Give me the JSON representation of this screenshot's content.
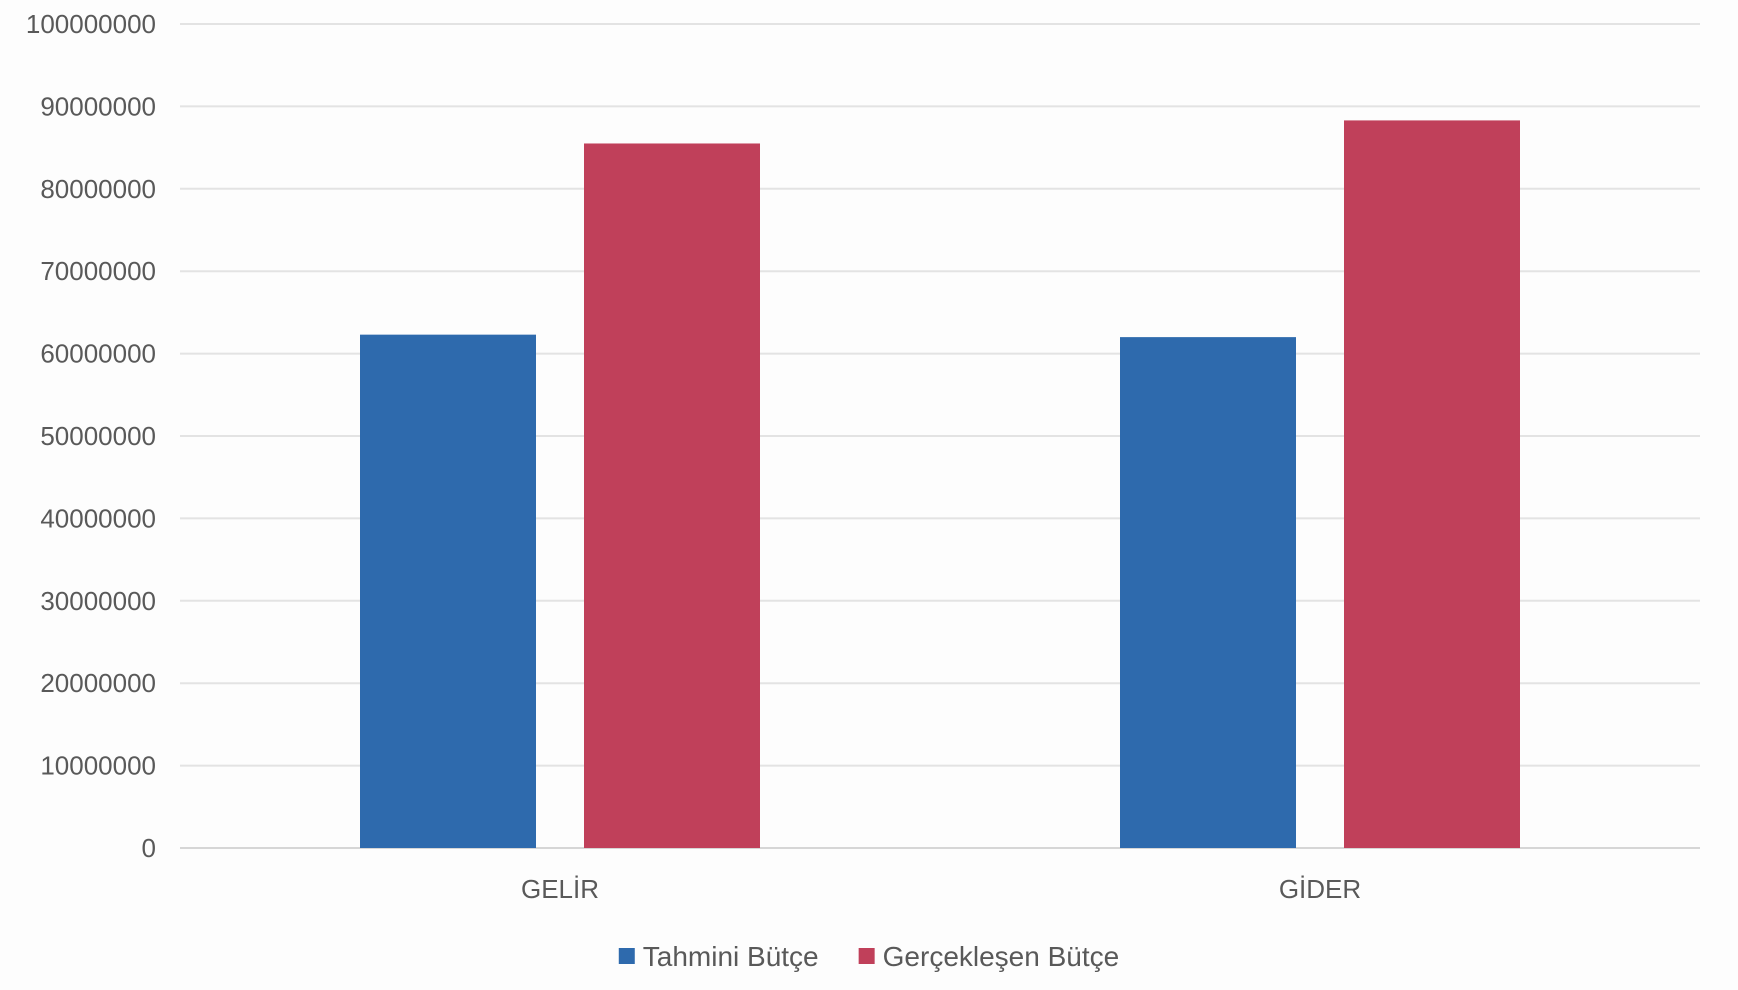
{
  "chart_data": {
    "type": "bar",
    "title": "",
    "xlabel": "",
    "ylabel": "",
    "categories": [
      "GELİR",
      "GİDER"
    ],
    "series": [
      {
        "name": "Tahmini Bütçe",
        "color": "#2e6aad",
        "values": [
          62300000,
          62000000
        ]
      },
      {
        "name": "Gerçekleşen Bütçe",
        "color": "#c0405a",
        "values": [
          85500000,
          88300000
        ]
      }
    ],
    "ylim": [
      0,
      100000000
    ],
    "yticks": [
      "0",
      "10000000",
      "20000000",
      "30000000",
      "40000000",
      "50000000",
      "60000000",
      "70000000",
      "80000000",
      "90000000",
      "100000000"
    ],
    "grid": true,
    "legend_position": "bottom-center"
  }
}
